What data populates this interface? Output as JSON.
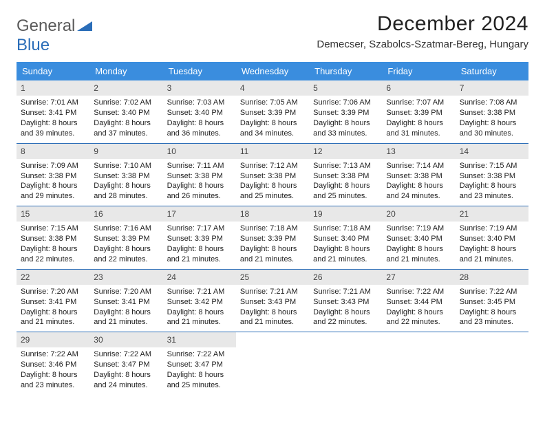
{
  "logo": {
    "part1": "General",
    "part2": "Blue"
  },
  "title": "December 2024",
  "location": "Demecser, Szabolcs-Szatmar-Bereg, Hungary",
  "colors": {
    "header_bg": "#3a8dde",
    "header_text": "#ffffff",
    "week_border": "#2a6db8",
    "daynum_bg": "#e8e8e8",
    "logo_gray": "#5a5a5a",
    "logo_blue": "#2a6db8"
  },
  "dayHeaders": [
    "Sunday",
    "Monday",
    "Tuesday",
    "Wednesday",
    "Thursday",
    "Friday",
    "Saturday"
  ],
  "weeks": [
    [
      {
        "n": "1",
        "sr": "7:01 AM",
        "ss": "3:41 PM",
        "dl": "8 hours and 39 minutes."
      },
      {
        "n": "2",
        "sr": "7:02 AM",
        "ss": "3:40 PM",
        "dl": "8 hours and 37 minutes."
      },
      {
        "n": "3",
        "sr": "7:03 AM",
        "ss": "3:40 PM",
        "dl": "8 hours and 36 minutes."
      },
      {
        "n": "4",
        "sr": "7:05 AM",
        "ss": "3:39 PM",
        "dl": "8 hours and 34 minutes."
      },
      {
        "n": "5",
        "sr": "7:06 AM",
        "ss": "3:39 PM",
        "dl": "8 hours and 33 minutes."
      },
      {
        "n": "6",
        "sr": "7:07 AM",
        "ss": "3:39 PM",
        "dl": "8 hours and 31 minutes."
      },
      {
        "n": "7",
        "sr": "7:08 AM",
        "ss": "3:38 PM",
        "dl": "8 hours and 30 minutes."
      }
    ],
    [
      {
        "n": "8",
        "sr": "7:09 AM",
        "ss": "3:38 PM",
        "dl": "8 hours and 29 minutes."
      },
      {
        "n": "9",
        "sr": "7:10 AM",
        "ss": "3:38 PM",
        "dl": "8 hours and 28 minutes."
      },
      {
        "n": "10",
        "sr": "7:11 AM",
        "ss": "3:38 PM",
        "dl": "8 hours and 26 minutes."
      },
      {
        "n": "11",
        "sr": "7:12 AM",
        "ss": "3:38 PM",
        "dl": "8 hours and 25 minutes."
      },
      {
        "n": "12",
        "sr": "7:13 AM",
        "ss": "3:38 PM",
        "dl": "8 hours and 25 minutes."
      },
      {
        "n": "13",
        "sr": "7:14 AM",
        "ss": "3:38 PM",
        "dl": "8 hours and 24 minutes."
      },
      {
        "n": "14",
        "sr": "7:15 AM",
        "ss": "3:38 PM",
        "dl": "8 hours and 23 minutes."
      }
    ],
    [
      {
        "n": "15",
        "sr": "7:15 AM",
        "ss": "3:38 PM",
        "dl": "8 hours and 22 minutes."
      },
      {
        "n": "16",
        "sr": "7:16 AM",
        "ss": "3:39 PM",
        "dl": "8 hours and 22 minutes."
      },
      {
        "n": "17",
        "sr": "7:17 AM",
        "ss": "3:39 PM",
        "dl": "8 hours and 21 minutes."
      },
      {
        "n": "18",
        "sr": "7:18 AM",
        "ss": "3:39 PM",
        "dl": "8 hours and 21 minutes."
      },
      {
        "n": "19",
        "sr": "7:18 AM",
        "ss": "3:40 PM",
        "dl": "8 hours and 21 minutes."
      },
      {
        "n": "20",
        "sr": "7:19 AM",
        "ss": "3:40 PM",
        "dl": "8 hours and 21 minutes."
      },
      {
        "n": "21",
        "sr": "7:19 AM",
        "ss": "3:40 PM",
        "dl": "8 hours and 21 minutes."
      }
    ],
    [
      {
        "n": "22",
        "sr": "7:20 AM",
        "ss": "3:41 PM",
        "dl": "8 hours and 21 minutes."
      },
      {
        "n": "23",
        "sr": "7:20 AM",
        "ss": "3:41 PM",
        "dl": "8 hours and 21 minutes."
      },
      {
        "n": "24",
        "sr": "7:21 AM",
        "ss": "3:42 PM",
        "dl": "8 hours and 21 minutes."
      },
      {
        "n": "25",
        "sr": "7:21 AM",
        "ss": "3:43 PM",
        "dl": "8 hours and 21 minutes."
      },
      {
        "n": "26",
        "sr": "7:21 AM",
        "ss": "3:43 PM",
        "dl": "8 hours and 22 minutes."
      },
      {
        "n": "27",
        "sr": "7:22 AM",
        "ss": "3:44 PM",
        "dl": "8 hours and 22 minutes."
      },
      {
        "n": "28",
        "sr": "7:22 AM",
        "ss": "3:45 PM",
        "dl": "8 hours and 23 minutes."
      }
    ],
    [
      {
        "n": "29",
        "sr": "7:22 AM",
        "ss": "3:46 PM",
        "dl": "8 hours and 23 minutes."
      },
      {
        "n": "30",
        "sr": "7:22 AM",
        "ss": "3:47 PM",
        "dl": "8 hours and 24 minutes."
      },
      {
        "n": "31",
        "sr": "7:22 AM",
        "ss": "3:47 PM",
        "dl": "8 hours and 25 minutes."
      },
      null,
      null,
      null,
      null
    ]
  ],
  "labels": {
    "sunrise": "Sunrise:",
    "sunset": "Sunset:",
    "daylight": "Daylight:"
  }
}
